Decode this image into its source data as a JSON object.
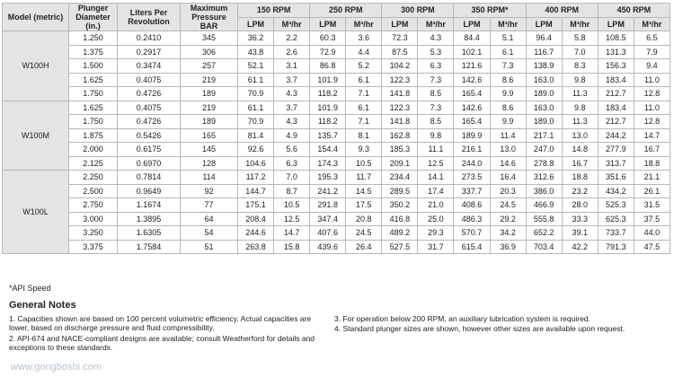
{
  "header": {
    "model": "Model (metric)",
    "plunger": "Plunger Diameter (in.)",
    "liters": "Liters Per Revolution",
    "pressure": "Maximum Pressure BAR",
    "speeds": [
      "150 RPM",
      "250 RPM",
      "300 RPM",
      "350 RPM*",
      "400 RPM",
      "450 RPM"
    ],
    "lpm": "LPM",
    "m3": "M³/hr"
  },
  "table": {
    "groups": [
      {
        "model": "W100H",
        "rows": [
          [
            "1.250",
            "0.2410",
            "345",
            "36.2",
            "2.2",
            "60.3",
            "3.6",
            "72.3",
            "4.3",
            "84.4",
            "5.1",
            "96.4",
            "5.8",
            "108.5",
            "6.5"
          ],
          [
            "1.375",
            "0.2917",
            "306",
            "43.8",
            "2.6",
            "72.9",
            "4.4",
            "87.5",
            "5.3",
            "102.1",
            "6.1",
            "116.7",
            "7.0",
            "131.3",
            "7.9"
          ],
          [
            "1.500",
            "0.3474",
            "257",
            "52.1",
            "3.1",
            "86.8",
            "5.2",
            "104.2",
            "6.3",
            "121.6",
            "7.3",
            "138.9",
            "8.3",
            "156.3",
            "9.4"
          ],
          [
            "1.625",
            "0.4075",
            "219",
            "61.1",
            "3.7",
            "101.9",
            "6.1",
            "122.3",
            "7.3",
            "142.6",
            "8.6",
            "163.0",
            "9.8",
            "183.4",
            "11.0"
          ],
          [
            "1.750",
            "0.4726",
            "189",
            "70.9",
            "4.3",
            "118.2",
            "7.1",
            "141.8",
            "8.5",
            "165.4",
            "9.9",
            "189.0",
            "11.3",
            "212.7",
            "12.8"
          ]
        ]
      },
      {
        "model": "W100M",
        "rows": [
          [
            "1.625",
            "0.4075",
            "219",
            "61.1",
            "3.7",
            "101.9",
            "6.1",
            "122.3",
            "7.3",
            "142.6",
            "8.6",
            "163.0",
            "9.8",
            "183.4",
            "11.0"
          ],
          [
            "1.750",
            "0.4726",
            "189",
            "70.9",
            "4.3",
            "118.2",
            "7.1",
            "141.8",
            "8.5",
            "165.4",
            "9.9",
            "189.0",
            "11.3",
            "212.7",
            "12.8"
          ],
          [
            "1.875",
            "0.5426",
            "165",
            "81.4",
            "4.9",
            "135.7",
            "8.1",
            "162.8",
            "9.8",
            "189.9",
            "11.4",
            "217.1",
            "13.0",
            "244.2",
            "14.7"
          ],
          [
            "2.000",
            "0.6175",
            "145",
            "92.6",
            "5.6",
            "154.4",
            "9.3",
            "185.3",
            "11.1",
            "216.1",
            "13.0",
            "247.0",
            "14.8",
            "277.9",
            "16.7"
          ],
          [
            "2.125",
            "0.6970",
            "128",
            "104.6",
            "6.3",
            "174.3",
            "10.5",
            "209.1",
            "12.5",
            "244.0",
            "14.6",
            "278.8",
            "16.7",
            "313.7",
            "18.8"
          ]
        ]
      },
      {
        "model": "W100L",
        "rows": [
          [
            "2.250",
            "0.7814",
            "114",
            "117.2",
            "7.0",
            "195.3",
            "11.7",
            "234.4",
            "14.1",
            "273.5",
            "16.4",
            "312.6",
            "18.8",
            "351.6",
            "21.1"
          ],
          [
            "2.500",
            "0.9649",
            "92",
            "144.7",
            "8.7",
            "241.2",
            "14.5",
            "289.5",
            "17.4",
            "337.7",
            "20.3",
            "386.0",
            "23.2",
            "434.2",
            "26.1"
          ],
          [
            "2.750",
            "1.1674",
            "77",
            "175.1",
            "10.5",
            "291.8",
            "17.5",
            "350.2",
            "21.0",
            "408.6",
            "24.5",
            "466.9",
            "28.0",
            "525.3",
            "31.5"
          ],
          [
            "3.000",
            "1.3895",
            "64",
            "208.4",
            "12.5",
            "347.4",
            "20.8",
            "416.8",
            "25.0",
            "486.3",
            "29.2",
            "555.8",
            "33.3",
            "625.3",
            "37.5"
          ],
          [
            "3.250",
            "1.6305",
            "54",
            "244.6",
            "14.7",
            "407.6",
            "24.5",
            "489.2",
            "29.3",
            "570.7",
            "34.2",
            "652.2",
            "39.1",
            "733.7",
            "44.0"
          ],
          [
            "3.375",
            "1.7584",
            "51",
            "263.8",
            "15.8",
            "439.6",
            "26.4",
            "527.5",
            "31.7",
            "615.4",
            "36.9",
            "703.4",
            "42.2",
            "791.3",
            "47.5"
          ]
        ]
      }
    ]
  },
  "footnote": "*API Speed",
  "notes": {
    "title": "General Notes",
    "items": [
      "1. Capacities shown are based on 100 percent volumetric efficiency. Actual capacities are lower, based on discharge pressure and fluid compressibility.",
      "2. API-674 and NACE-compliant designs are available; consult Weatherford for details and exceptions to these standards.",
      "3. For operation below 200 RPM, an auxiliary lubrication system is required.",
      "4. Standard plunger sizes are shown, however other sizes are available upon request."
    ]
  },
  "watermark": "www.gongboshi.com"
}
